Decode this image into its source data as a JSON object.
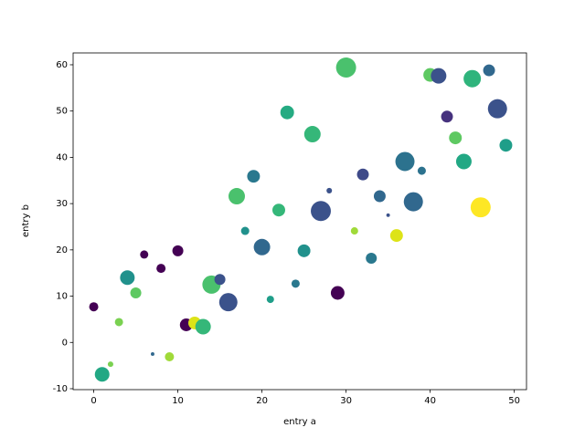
{
  "chart_data": {
    "type": "scatter",
    "x_label": "entry a",
    "y_label": "entry b",
    "x": [
      0,
      1,
      2,
      3,
      4,
      5,
      6,
      7,
      8,
      9,
      10,
      11,
      12,
      13,
      14,
      15,
      16,
      17,
      18,
      19,
      20,
      21,
      22,
      23,
      24,
      25,
      26,
      27,
      28,
      29,
      30,
      31,
      32,
      33,
      34,
      35,
      36,
      37,
      38,
      39,
      40,
      41,
      42,
      43,
      44,
      45,
      46,
      47,
      48,
      49
    ],
    "values": [
      7.7,
      -6.9,
      -4.7,
      4.4,
      14.0,
      10.7,
      19.0,
      -2.5,
      16.0,
      -3.1,
      19.8,
      3.8,
      4.2,
      3.4,
      12.5,
      13.6,
      8.7,
      31.6,
      24.1,
      35.9,
      20.6,
      9.3,
      28.6,
      49.7,
      12.7,
      19.8,
      45.0,
      28.4,
      32.8,
      10.7,
      59.4,
      24.1,
      36.3,
      18.2,
      31.6,
      27.5,
      23.1,
      39.1,
      30.4,
      37.1,
      57.8,
      57.6,
      48.8,
      44.2,
      39.1,
      57.0,
      29.2,
      58.8,
      50.5,
      42.6
    ],
    "sizes": [
      52,
      133,
      19,
      42,
      133,
      75,
      42,
      8,
      52,
      52,
      75,
      101,
      101,
      150,
      207,
      75,
      207,
      168,
      42,
      101,
      168,
      33,
      101,
      116,
      42,
      101,
      168,
      250,
      19,
      116,
      250,
      33,
      87,
      75,
      87,
      8,
      101,
      228,
      228,
      42,
      116,
      150,
      87,
      101,
      150,
      187,
      250,
      87,
      228,
      101
    ],
    "colors": [
      "#440154",
      "#22a884",
      "#7ad151",
      "#7ad151",
      "#21918c",
      "#5ec962",
      "#440154",
      "#31688e",
      "#440154",
      "#a0da39",
      "#440154",
      "#440154",
      "#dde318",
      "#35b779",
      "#4ac16d",
      "#3b528b",
      "#3b528b",
      "#4ac16d",
      "#21918c",
      "#2a788e",
      "#31688e",
      "#1f9e89",
      "#35b779",
      "#25ab82",
      "#2a788e",
      "#21918c",
      "#35b779",
      "#3b528b",
      "#3b528b",
      "#440154",
      "#4ac16d",
      "#a0da39",
      "#3e4a89",
      "#2a788e",
      "#31688e",
      "#3b528b",
      "#dde318",
      "#2c728e",
      "#31688e",
      "#2c728e",
      "#5ec962",
      "#3b528b",
      "#46327e",
      "#5ec962",
      "#22a884",
      "#2fb47c",
      "#fde725",
      "#31688e",
      "#3b528b",
      "#1f9e89"
    ],
    "xlim": [
      -2.45,
      51.45
    ],
    "ylim": [
      -10.2,
      62.56
    ],
    "xticks": [
      0,
      10,
      20,
      30,
      40,
      50
    ],
    "yticks": [
      -10,
      0,
      10,
      20,
      30,
      40,
      50,
      60
    ]
  }
}
